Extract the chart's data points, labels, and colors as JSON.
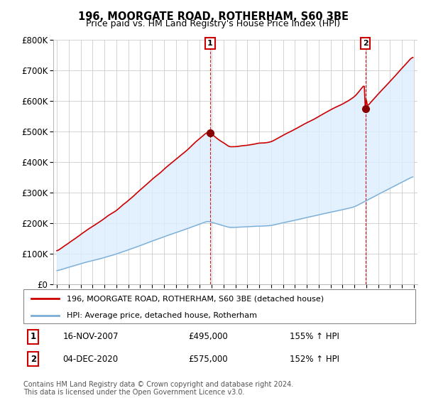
{
  "title": "196, MOORGATE ROAD, ROTHERHAM, S60 3BE",
  "subtitle": "Price paid vs. HM Land Registry's House Price Index (HPI)",
  "legend_line1": "196, MOORGATE ROAD, ROTHERHAM, S60 3BE (detached house)",
  "legend_line2": "HPI: Average price, detached house, Rotherham",
  "footnote": "Contains HM Land Registry data © Crown copyright and database right 2024.\nThis data is licensed under the Open Government Licence v3.0.",
  "purchase1_date": "16-NOV-2007",
  "purchase1_price": 495000,
  "purchase1_hpi_pct": "155% ↑ HPI",
  "purchase2_date": "04-DEC-2020",
  "purchase2_price": 575000,
  "purchase2_hpi_pct": "152% ↑ HPI",
  "red_color": "#cc0000",
  "blue_color": "#7aadd4",
  "fill_color": "#ddeeff",
  "ylim": [
    0,
    800000
  ],
  "yticks": [
    0,
    100000,
    200000,
    300000,
    400000,
    500000,
    600000,
    700000,
    800000
  ],
  "ytick_labels": [
    "£0",
    "£100K",
    "£200K",
    "£300K",
    "£400K",
    "£500K",
    "£600K",
    "£700K",
    "£800K"
  ],
  "xlim_start": 1994.7,
  "xlim_end": 2025.3,
  "background_color": "#ffffff",
  "grid_color": "#cccccc"
}
